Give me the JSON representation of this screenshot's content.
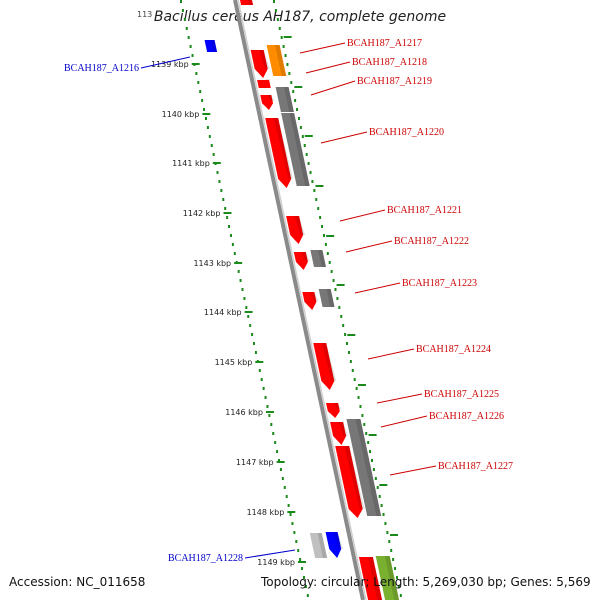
{
  "title": "Bacillus cereus AH187, complete genome",
  "title_fragment": "113",
  "accession": "Accession: NC_011658",
  "topology": "Topology: circular; Length: 5,269,030 bp; Genes: 5,569",
  "scale_ticks": [
    "1139 kbp",
    "1140 kbp",
    "1141 kbp",
    "1142 kbp",
    "1143 kbp",
    "1144 kbp",
    "1145 kbp",
    "1146 kbp",
    "1147 kbp",
    "1148 kbp",
    "1149 kbp"
  ],
  "gene_labels": {
    "a1216": "BCAH187_A1216",
    "a1217": "BCAH187_A1217",
    "a1218": "BCAH187_A1218",
    "a1219": "BCAH187_A1219",
    "a1220": "BCAH187_A1220",
    "a1221": "BCAH187_A1221",
    "a1222": "BCAH187_A1222",
    "a1223": "BCAH187_A1223",
    "a1224": "BCAH187_A1224",
    "a1225": "BCAH187_A1225",
    "a1226": "BCAH187_A1226",
    "a1227": "BCAH187_A1227",
    "a1228": "BCAH187_A1228"
  },
  "colors": {
    "cds": "#ff0000",
    "cds_shadow": "#b00000",
    "gray_feature": "#777777",
    "orange_feature": "#ff8c00",
    "blue_feature": "#0000ff",
    "green_feature": "#7ab030",
    "light_gray_feature": "#c0c0c0",
    "backbone": "#8a8a8a",
    "ruler": "#1a8a1a",
    "label_red": "#cc0000",
    "label_blue": "#0000cc"
  }
}
